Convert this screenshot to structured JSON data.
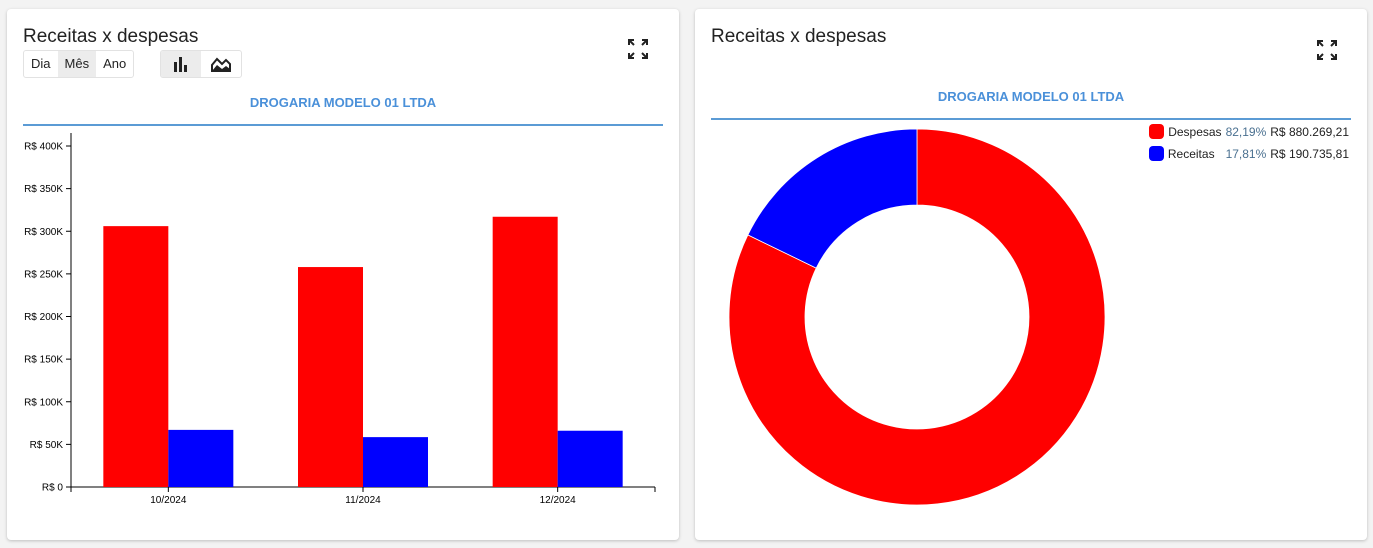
{
  "left_panel": {
    "title": "Receitas x despesas",
    "period_options": [
      {
        "label": "Dia",
        "active": false
      },
      {
        "label": "Mês",
        "active": true
      },
      {
        "label": "Ano",
        "active": false
      }
    ],
    "chart_type_options": [
      {
        "icon": "bar-chart-icon",
        "active": true
      },
      {
        "icon": "area-chart-icon",
        "active": false
      }
    ],
    "company": "DROGARIA MODELO 01 LTDA"
  },
  "right_panel": {
    "title": "Receitas x despesas",
    "company": "DROGARIA MODELO 01 LTDA"
  },
  "colors": {
    "despesas": "#ff0000",
    "receitas": "#0000ff",
    "accent": "#4a90d9"
  },
  "chart_data": [
    {
      "type": "bar",
      "categories": [
        "10/2024",
        "11/2024",
        "12/2024"
      ],
      "series": [
        {
          "name": "Despesas",
          "color": "#ff0000",
          "values": [
            306000,
            258000,
            317000
          ]
        },
        {
          "name": "Receitas",
          "color": "#0000ff",
          "values": [
            67000,
            58500,
            66000
          ]
        }
      ],
      "ylim": [
        0,
        400000
      ],
      "yticks": [
        {
          "value": 0,
          "label": "R$ 0"
        },
        {
          "value": 50000,
          "label": "R$ 50K"
        },
        {
          "value": 100000,
          "label": "R$ 100K"
        },
        {
          "value": 150000,
          "label": "R$ 150K"
        },
        {
          "value": 200000,
          "label": "R$ 200K"
        },
        {
          "value": 250000,
          "label": "R$ 250K"
        },
        {
          "value": 300000,
          "label": "R$ 300K"
        },
        {
          "value": 350000,
          "label": "R$ 350K"
        },
        {
          "value": 400000,
          "label": "R$ 400K"
        }
      ],
      "grid": false
    },
    {
      "type": "pie",
      "donut": true,
      "slices": [
        {
          "name": "Despesas",
          "percent_label": "82,19%",
          "value_label": "R$ 880.269,21",
          "value": 880269.21,
          "color": "#ff0000"
        },
        {
          "name": "Receitas",
          "percent_label": "17,81%",
          "value_label": "R$ 190.735,81",
          "value": 190735.81,
          "color": "#0000ff"
        }
      ],
      "legend_position": "top-right"
    }
  ]
}
